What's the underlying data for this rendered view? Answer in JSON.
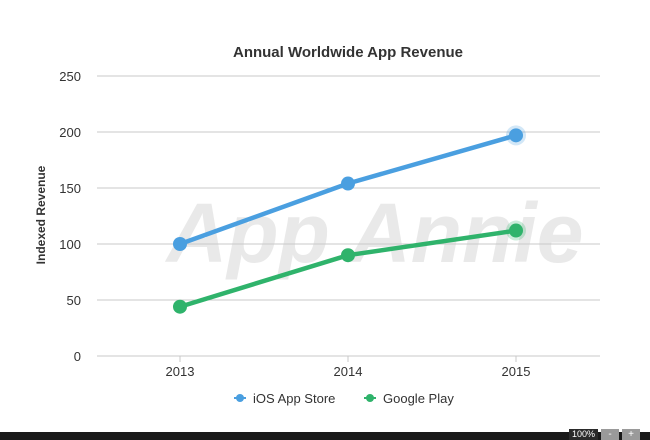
{
  "chart_data": {
    "type": "line",
    "title": "Annual Worldwide App Revenue",
    "xlabel": "",
    "ylabel": "Indexed Revenue",
    "categories": [
      "2013",
      "2014",
      "2015"
    ],
    "ylim": [
      0,
      250
    ],
    "yticks": [
      0,
      50,
      100,
      150,
      200,
      250
    ],
    "grid": true,
    "legend_position": "bottom",
    "watermark": "App Annie",
    "series": [
      {
        "name": "iOS App Store",
        "color": "#4a9fe0",
        "values": [
          100,
          154,
          197
        ]
      },
      {
        "name": "Google Play",
        "color": "#2fb36b",
        "values": [
          44,
          90,
          112
        ]
      }
    ]
  },
  "viewer": {
    "zoom_level": "100%",
    "zoom_out_label": "-",
    "zoom_in_label": "+"
  }
}
